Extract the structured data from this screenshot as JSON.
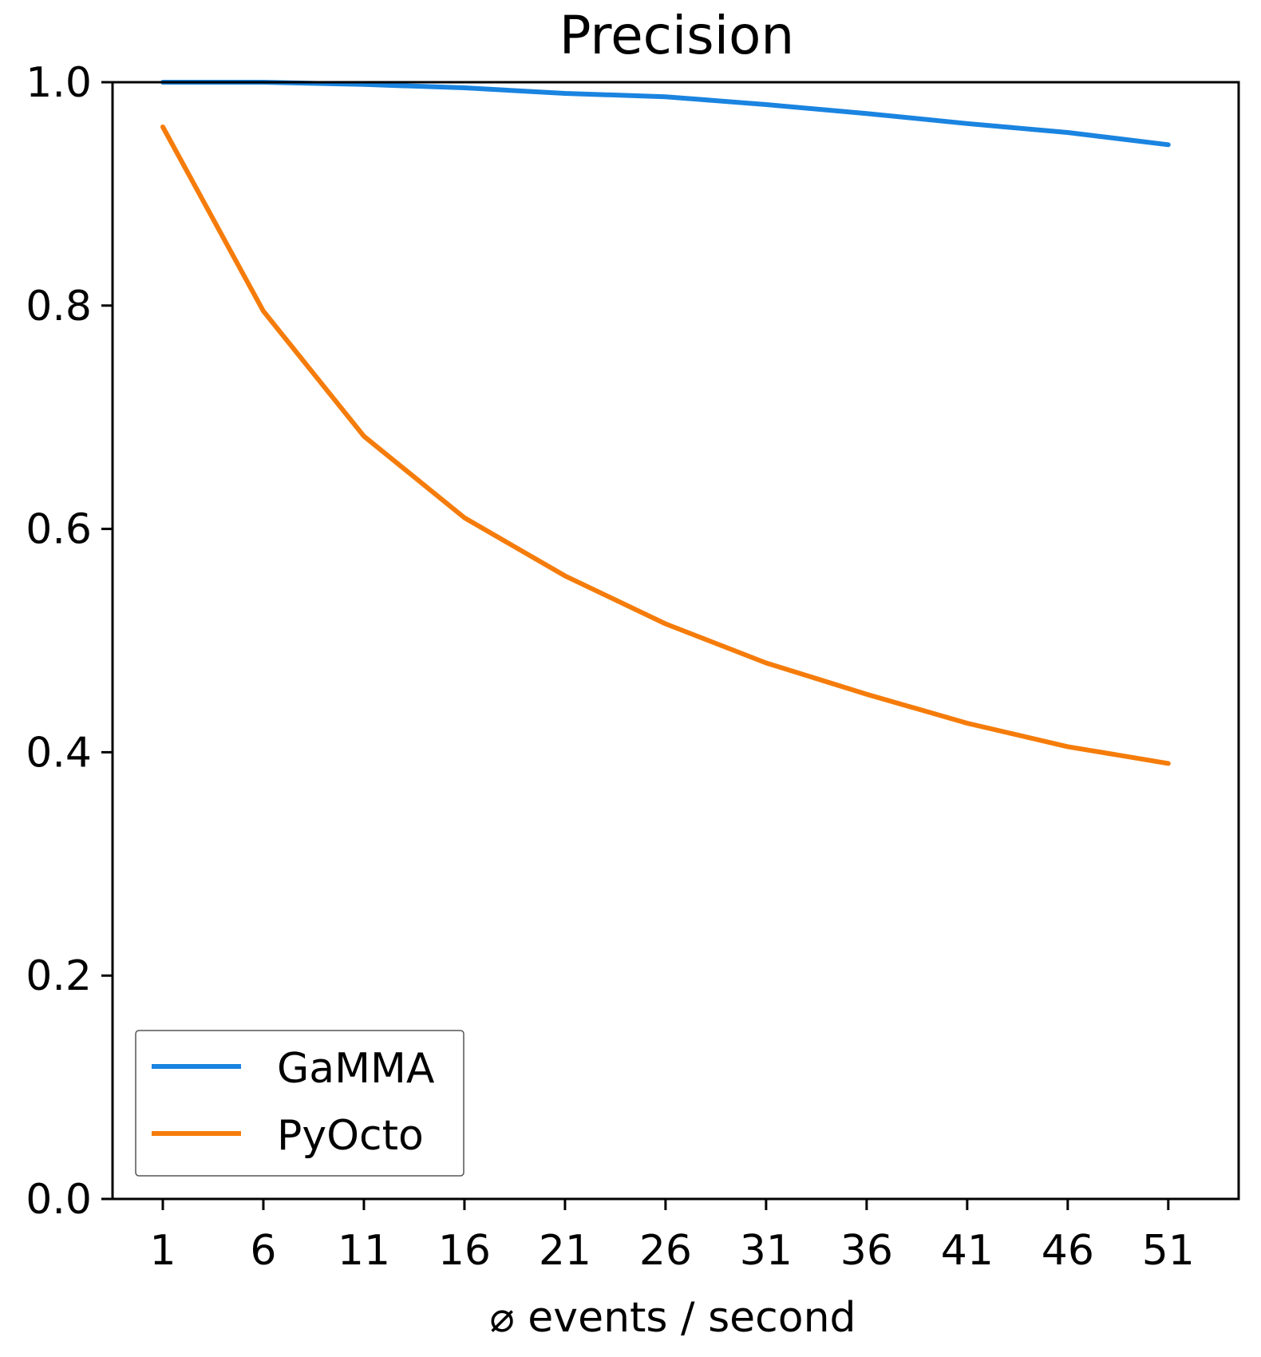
{
  "chart_data": {
    "type": "line",
    "title": "Precision",
    "xlabel": "⌀ events / second",
    "ylabel": "",
    "x": [
      1,
      6,
      11,
      16,
      21,
      26,
      31,
      36,
      41,
      46,
      51
    ],
    "xlim": [
      -1.5,
      54.5
    ],
    "ylim": [
      0.0,
      1.0
    ],
    "xticks": [
      1,
      6,
      11,
      16,
      21,
      26,
      31,
      36,
      41,
      46,
      51
    ],
    "xtick_labels": [
      "1",
      "6",
      "11",
      "16",
      "21",
      "26",
      "31",
      "36",
      "41",
      "46",
      "51"
    ],
    "yticks": [
      0.0,
      0.2,
      0.4,
      0.6,
      0.8,
      1.0
    ],
    "ytick_labels": [
      "0.0",
      "0.2",
      "0.4",
      "0.6",
      "0.8",
      "1.0"
    ],
    "grid": false,
    "legend_position": "lower-left",
    "series": [
      {
        "name": "GaMMA",
        "color": "#1a84e0",
        "values": [
          1.0,
          1.0,
          0.998,
          0.995,
          0.99,
          0.987,
          0.98,
          0.972,
          0.963,
          0.955,
          0.944
        ]
      },
      {
        "name": "PyOcto",
        "color": "#f57c0a",
        "values": [
          0.96,
          0.795,
          0.683,
          0.61,
          0.558,
          0.515,
          0.48,
          0.452,
          0.426,
          0.405,
          0.39
        ]
      }
    ]
  }
}
